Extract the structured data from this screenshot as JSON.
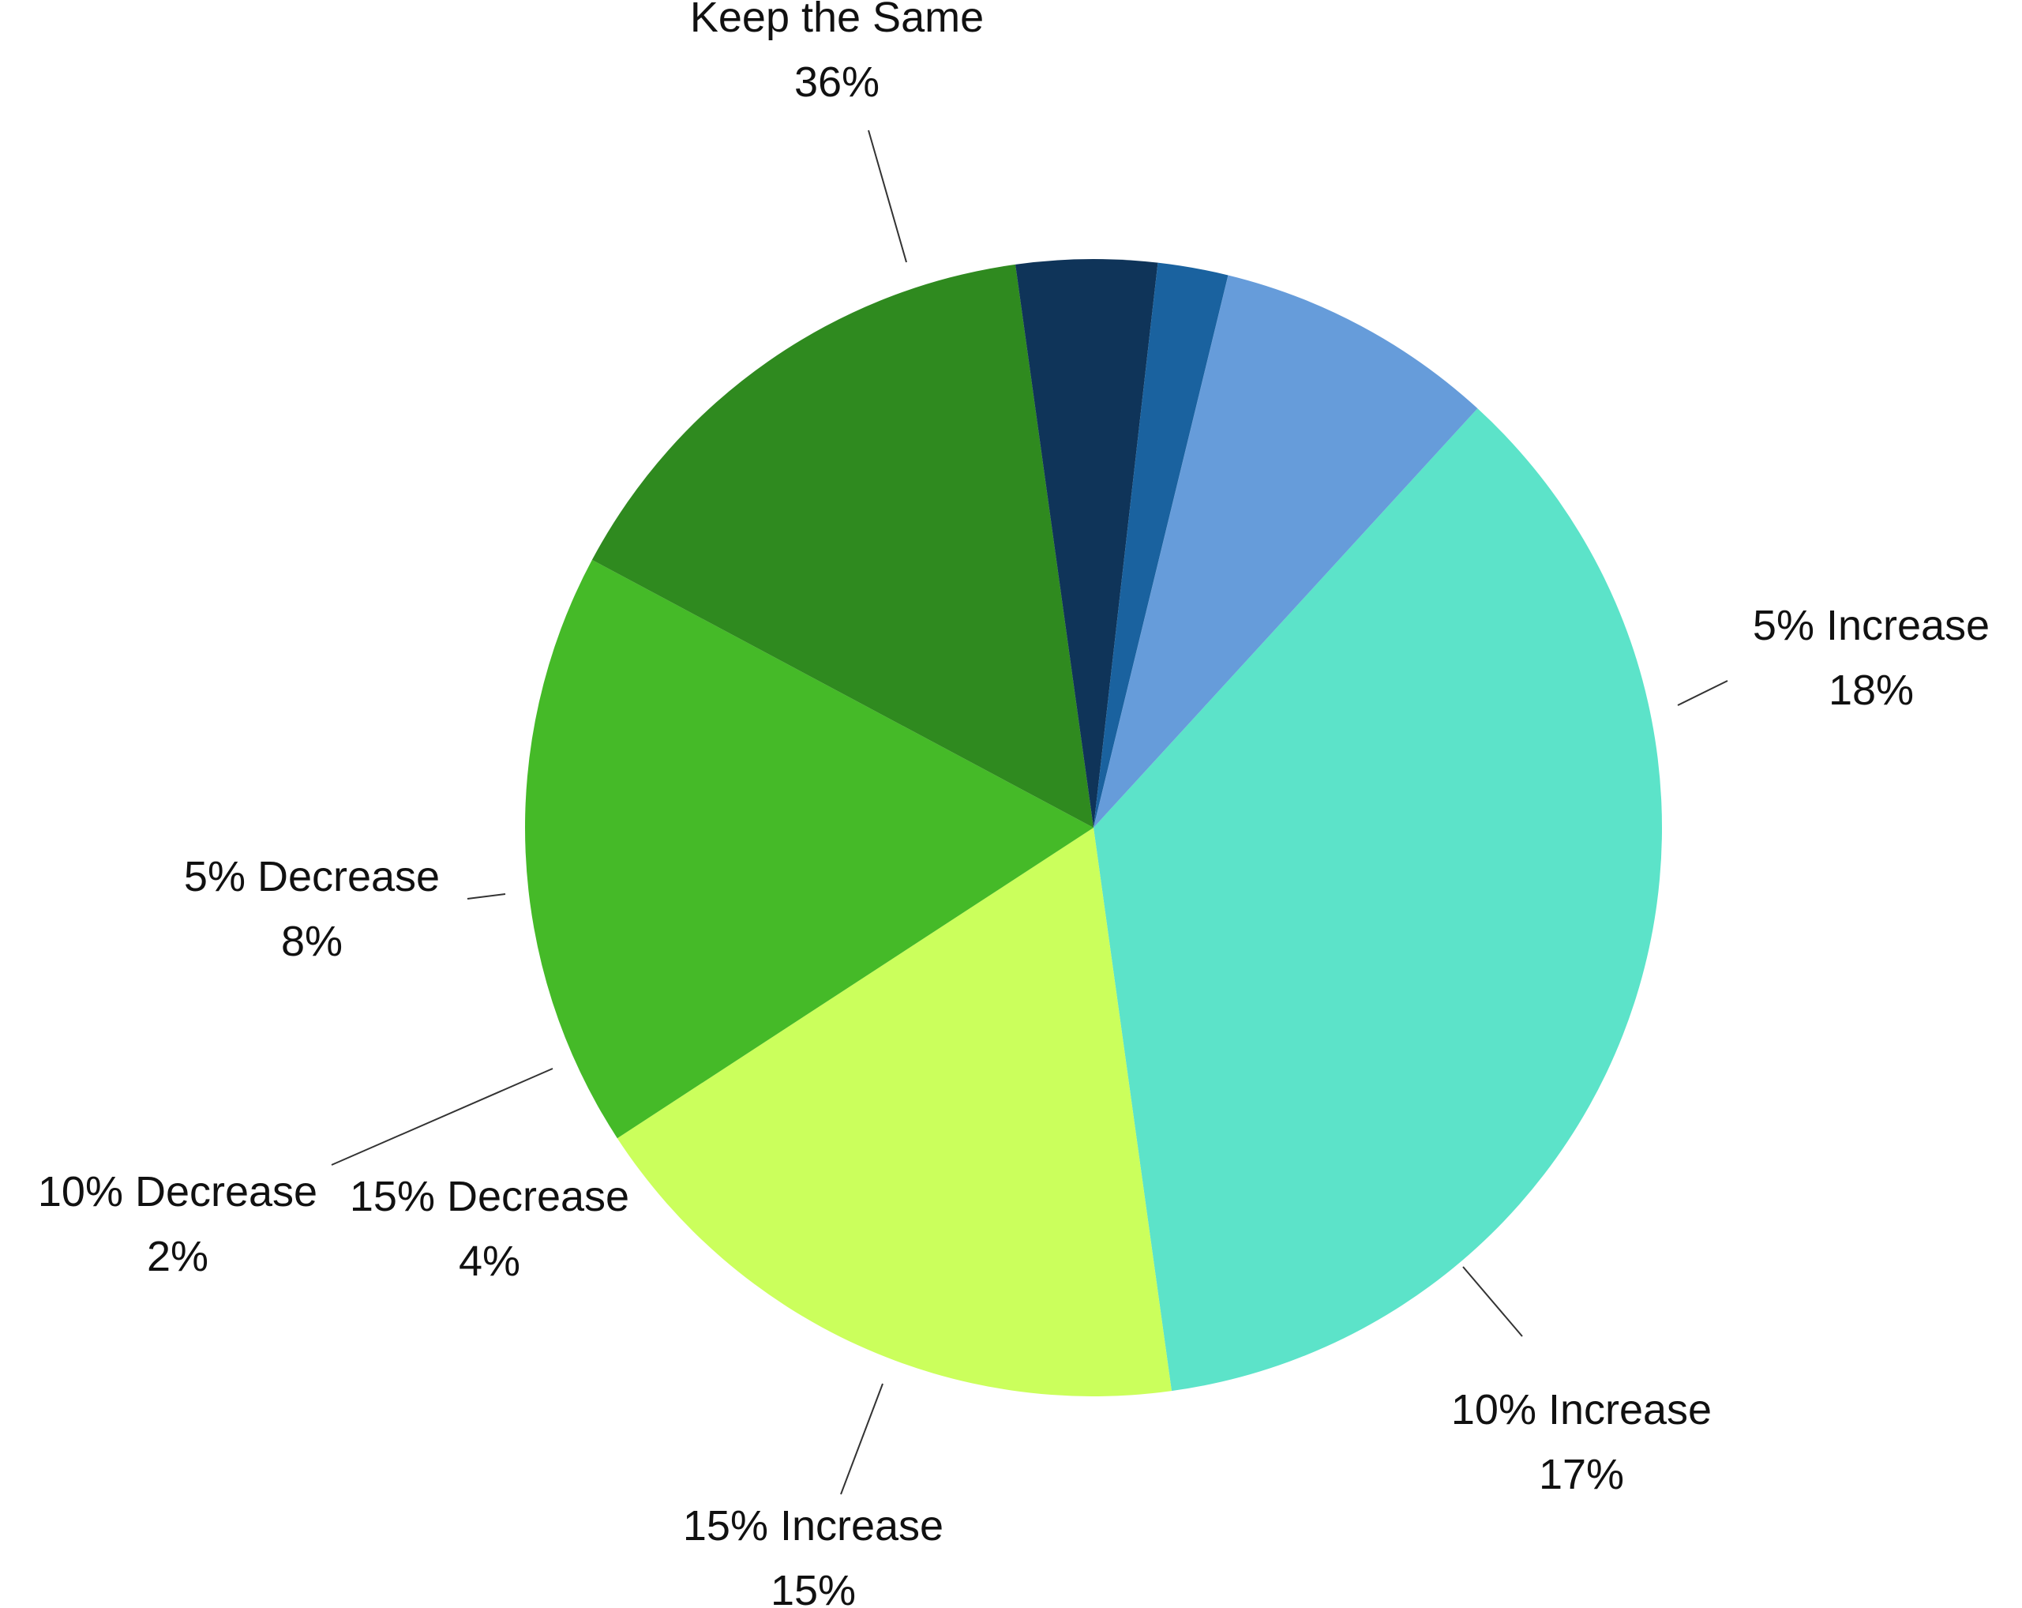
{
  "chart_data": {
    "type": "pie",
    "slices": [
      {
        "label": "Keep the Same",
        "value_label": "36%",
        "value": 36,
        "color": "#5CE3C9"
      },
      {
        "label": "5% Increase",
        "value_label": "18%",
        "value": 18,
        "color": "#CBFF5C"
      },
      {
        "label": "10% Increase",
        "value_label": "17%",
        "value": 17,
        "color": "#45BA28"
      },
      {
        "label": "15% Increase",
        "value_label": "15%",
        "value": 15,
        "color": "#2F8A1F"
      },
      {
        "label": "15% Decrease",
        "value_label": "4%",
        "value": 4,
        "color": "#0F3459"
      },
      {
        "label": "10% Decrease",
        "value_label": "2%",
        "value": 2,
        "color": "#1A629F"
      },
      {
        "label": "5% Decrease",
        "value_label": "8%",
        "value": 8,
        "color": "#669CDA"
      }
    ]
  }
}
